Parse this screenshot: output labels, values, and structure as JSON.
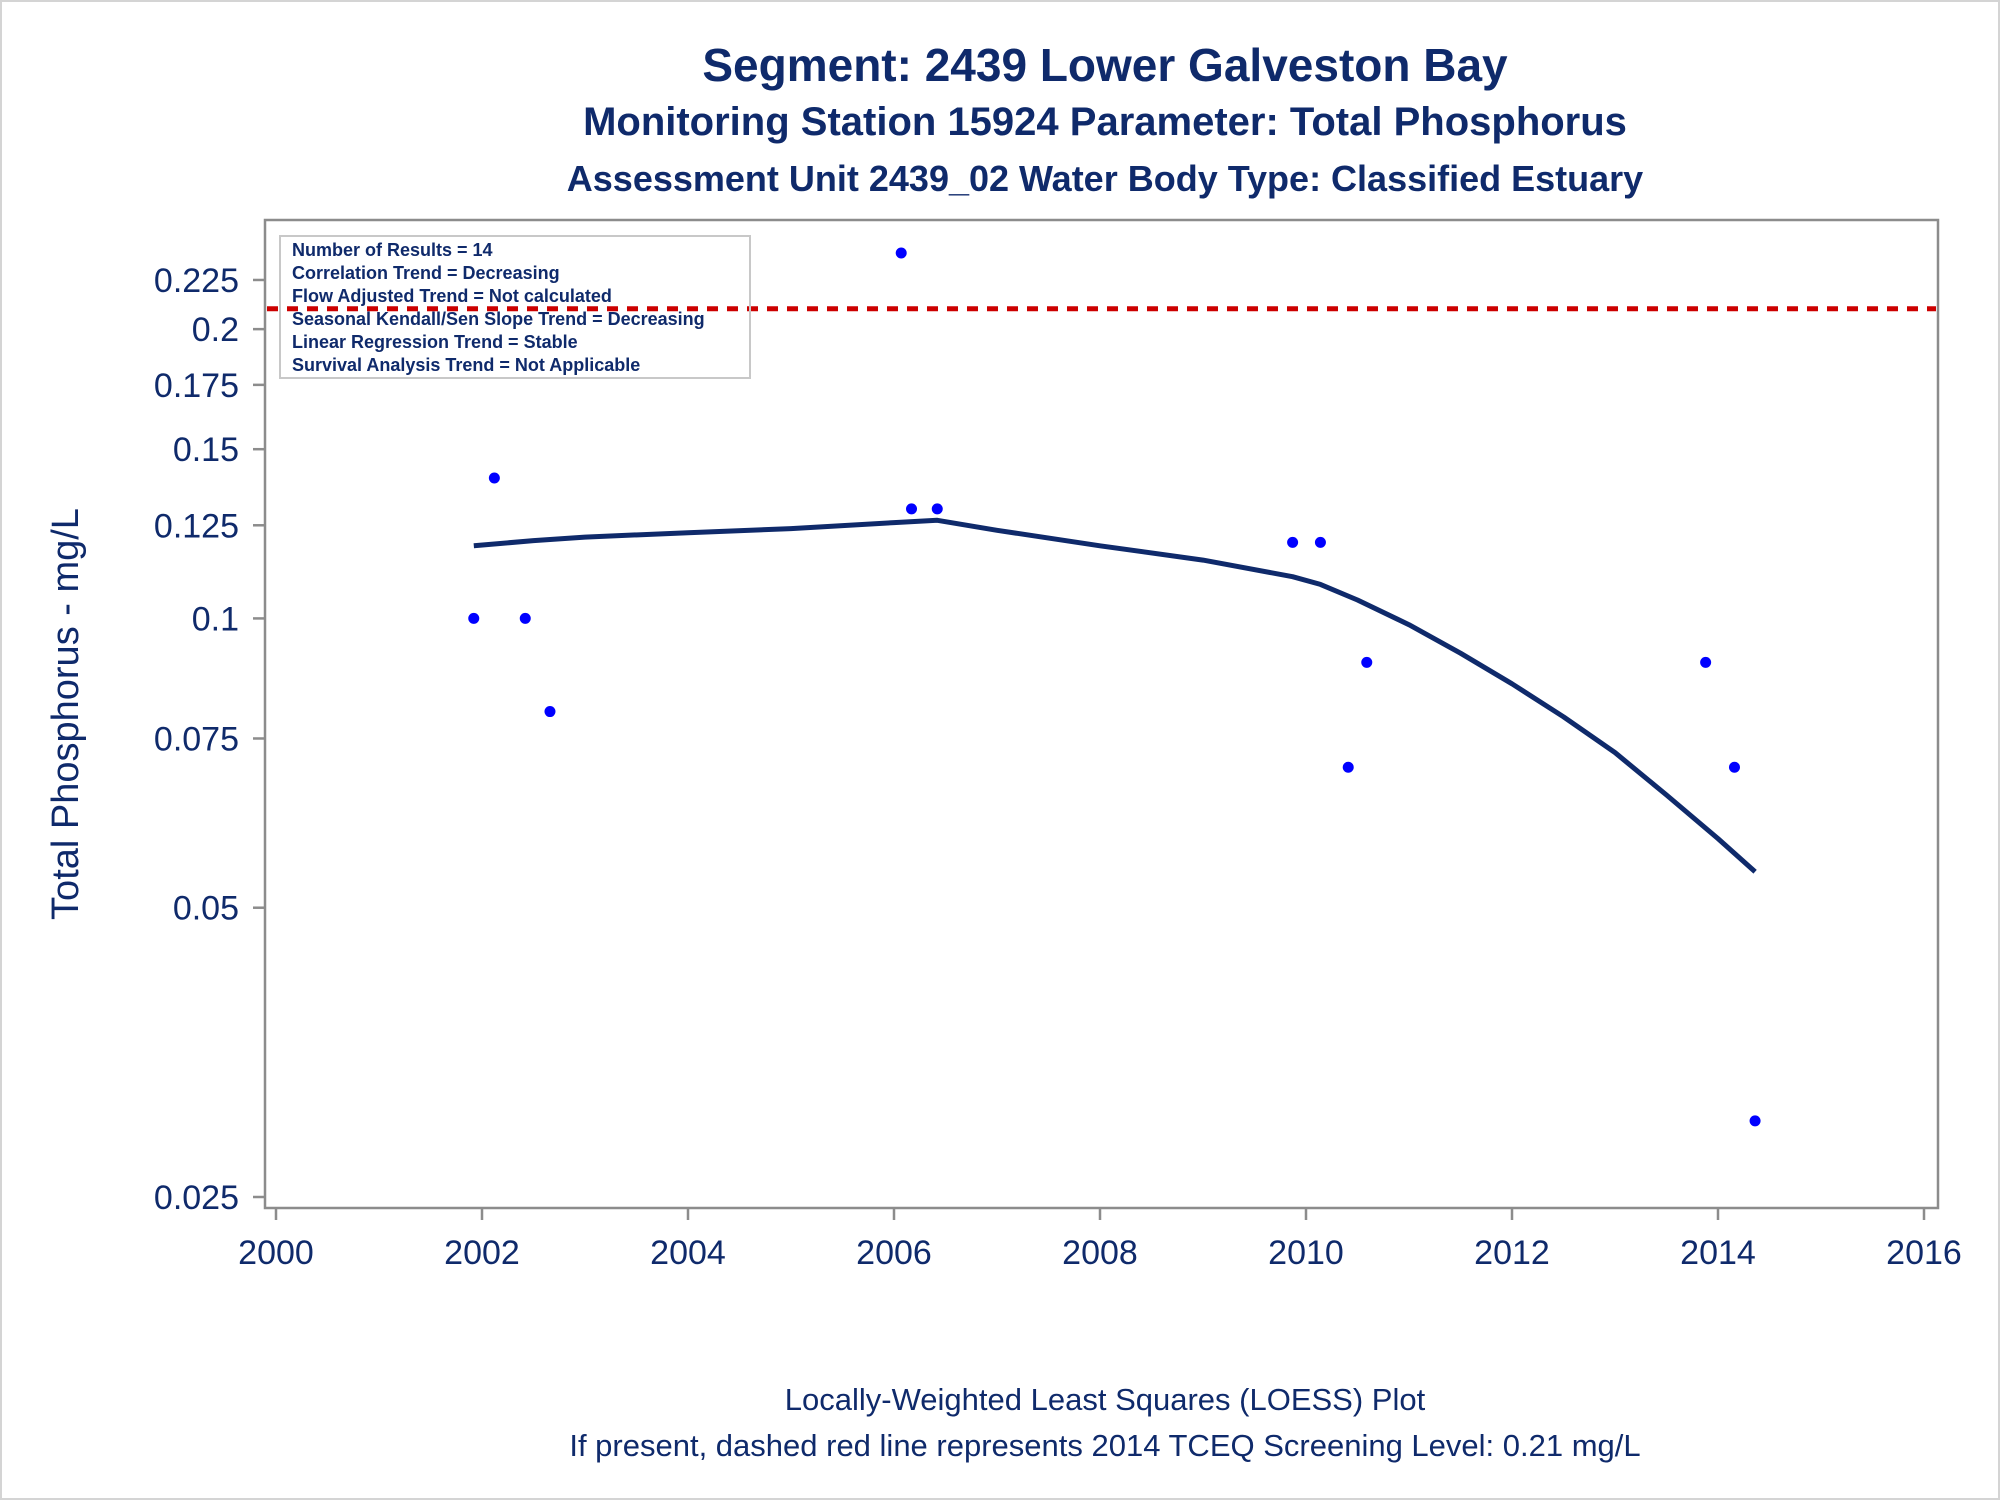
{
  "title": {
    "line1": "Segment: 2439  Lower Galveston Bay",
    "line2": "Monitoring Station 15924 Parameter: Total Phosphorus",
    "line3": "Assessment Unit 2439_02   Water Body Type: Classified Estuary"
  },
  "footer": {
    "line1": "Locally-Weighted Least Squares (LOESS) Plot",
    "line2": "If present, dashed red line represents 2014 TCEQ Screening Level: 0.21 mg/L"
  },
  "stats_box": [
    "Number of Results = 14",
    "Correlation Trend = Decreasing",
    "Flow Adjusted Trend = Not calculated",
    "Seasonal Kendall/Sen Slope Trend = Decreasing",
    "Linear Regression Trend = Stable",
    "Survival Analysis Trend = Not Applicable"
  ],
  "colors": {
    "text": "#0f2a6b",
    "points": "#0000ff",
    "loess": "#0f2a6b",
    "screening_line": "#cc0000",
    "axis": "#8c8c8c"
  },
  "chart_data": {
    "type": "scatter",
    "xlabel": "",
    "ylabel": "Total Phosphorus - mg/L",
    "y_scale": "log",
    "xlim": [
      2000,
      2016
    ],
    "ylim": [
      0.025,
      0.25
    ],
    "x_ticks": [
      2000,
      2002,
      2004,
      2006,
      2008,
      2010,
      2012,
      2014,
      2016
    ],
    "y_ticks": [
      0.025,
      0.05,
      0.075,
      0.1,
      0.125,
      0.15,
      0.175,
      0.2,
      0.225
    ],
    "y_tick_labels": [
      "0.025",
      "0.05",
      "0.075",
      "0.1",
      "0.125",
      "0.15",
      "0.175",
      "0.2",
      "0.225"
    ],
    "points": [
      {
        "x": 2001.92,
        "y": 0.1
      },
      {
        "x": 2002.12,
        "y": 0.14
      },
      {
        "x": 2002.42,
        "y": 0.1
      },
      {
        "x": 2002.66,
        "y": 0.08
      },
      {
        "x": 2006.07,
        "y": 0.24
      },
      {
        "x": 2006.17,
        "y": 0.13
      },
      {
        "x": 2006.42,
        "y": 0.13
      },
      {
        "x": 2009.87,
        "y": 0.12
      },
      {
        "x": 2010.14,
        "y": 0.12
      },
      {
        "x": 2010.41,
        "y": 0.07
      },
      {
        "x": 2010.59,
        "y": 0.09
      },
      {
        "x": 2013.88,
        "y": 0.09
      },
      {
        "x": 2014.16,
        "y": 0.07
      },
      {
        "x": 2014.36,
        "y": 0.03
      }
    ],
    "loess": {
      "x": [
        2001.92,
        2002.5,
        2003.0,
        2004.0,
        2005.0,
        2006.0,
        2006.42,
        2007.0,
        2008.0,
        2009.0,
        2009.87,
        2010.14,
        2010.5,
        2011.0,
        2011.5,
        2012.0,
        2012.5,
        2013.0,
        2013.5,
        2014.0,
        2014.36
      ],
      "y": [
        0.119,
        0.1205,
        0.1215,
        0.1228,
        0.124,
        0.1258,
        0.1265,
        0.1235,
        0.119,
        0.115,
        0.1105,
        0.1085,
        0.1045,
        0.0985,
        0.092,
        0.0855,
        0.079,
        0.0725,
        0.0655,
        0.059,
        0.0545
      ]
    },
    "screening_level": 0.21,
    "legend": "top-left"
  }
}
